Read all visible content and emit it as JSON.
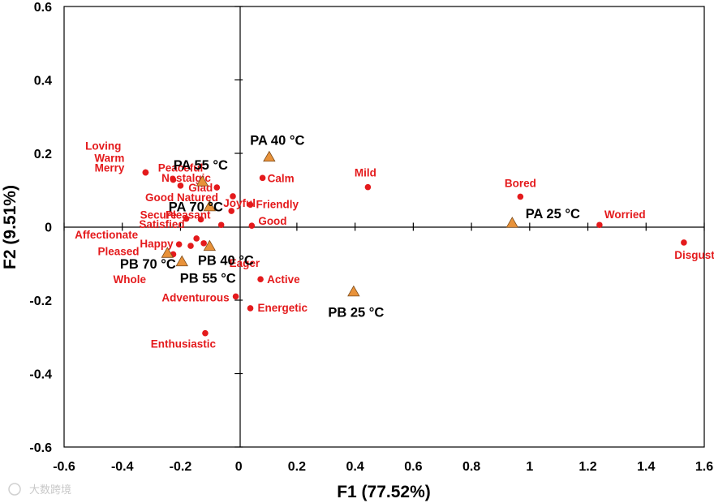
{
  "chart_data": {
    "type": "scatter",
    "title": "",
    "xlabel": "F1 (77.52%)",
    "ylabel": "F2 (9.51%)",
    "xlim": [
      -0.6,
      1.6
    ],
    "ylim": [
      -0.6,
      0.6
    ],
    "xticks": [
      -0.6,
      -0.4,
      -0.2,
      0,
      0.2,
      0.4,
      0.6,
      0.8,
      1,
      1.2,
      1.4,
      1.6
    ],
    "xtick_labels": [
      "-0.6",
      "-0.4",
      "-0.2",
      "0",
      "0.2",
      "0.4",
      "0.6",
      "0.8",
      "1",
      "1.2",
      "1.4",
      "1.6"
    ],
    "yticks": [
      -0.6,
      -0.4,
      -0.2,
      0,
      0.2,
      0.4,
      0.6
    ],
    "ytick_labels": [
      "-0.6",
      "-0.4",
      "-0.2",
      "0",
      "0.2",
      "0.4",
      "0.6"
    ],
    "grid": false,
    "series": [
      {
        "name": "Attributes",
        "marker": "circle",
        "color": "#e41a1c",
        "points": [
          {
            "label": "Loving",
            "x": -0.32,
            "y": 0.148
          },
          {
            "label": "Warm",
            "x": -0.32,
            "y": 0.148
          },
          {
            "label": "Merry",
            "x": -0.32,
            "y": 0.148
          },
          {
            "label": "Peaceful",
            "x": -0.225,
            "y": 0.128
          },
          {
            "label": "Nostalgic",
            "x": -0.2,
            "y": 0.112
          },
          {
            "label": "Glad",
            "x": -0.075,
            "y": 0.107
          },
          {
            "label": "Calm",
            "x": 0.082,
            "y": 0.133
          },
          {
            "label": "Mild",
            "x": 0.444,
            "y": 0.108
          },
          {
            "label": "Bored",
            "x": 0.968,
            "y": 0.082
          },
          {
            "label": "Good Natured",
            "x": -0.02,
            "y": 0.083
          },
          {
            "label": "Friendly",
            "x": 0.04,
            "y": 0.06
          },
          {
            "label": "Secure",
            "x": -0.18,
            "y": 0.022
          },
          {
            "label": "Joyful",
            "x": -0.025,
            "y": 0.043
          },
          {
            "label": "Pleasant",
            "x": -0.13,
            "y": 0.02
          },
          {
            "label": "Satisfied",
            "x": -0.06,
            "y": 0.005
          },
          {
            "label": "Good",
            "x": 0.045,
            "y": 0.003
          },
          {
            "label": "Worried",
            "x": 1.24,
            "y": 0.005
          },
          {
            "label": "Affectionate",
            "x": -0.145,
            "y": -0.032
          },
          {
            "label": "Happy",
            "x": -0.205,
            "y": -0.048
          },
          {
            "label": "Pleased",
            "x": -0.225,
            "y": -0.075
          },
          {
            "label": "Eager",
            "x": -0.12,
            "y": -0.045
          },
          {
            "label": "Disgusted",
            "x": 1.53,
            "y": -0.043
          },
          {
            "label": "Whole",
            "x": -0.165,
            "y": -0.052
          },
          {
            "label": "Active",
            "x": 0.075,
            "y": -0.143
          },
          {
            "label": "Adventurous",
            "x": -0.01,
            "y": -0.19
          },
          {
            "label": "Energetic",
            "x": 0.04,
            "y": -0.222
          },
          {
            "label": "Enthusiastic",
            "x": -0.115,
            "y": -0.29
          }
        ]
      },
      {
        "name": "Samples",
        "marker": "triangle",
        "color": "#e8923a",
        "points": [
          {
            "label": "PA 40 °C",
            "x": 0.105,
            "y": 0.19
          },
          {
            "label": "PA 55 °C",
            "x": -0.125,
            "y": 0.123
          },
          {
            "label": "PA 70 °C",
            "x": -0.1,
            "y": 0.055
          },
          {
            "label": "PA 25 °C",
            "x": 0.94,
            "y": 0.01
          },
          {
            "label": "PB 40 °C",
            "x": -0.1,
            "y": -0.053
          },
          {
            "label": "PB 70 °C",
            "x": -0.245,
            "y": -0.072
          },
          {
            "label": "PB 55 °C",
            "x": -0.195,
            "y": -0.095
          },
          {
            "label": "PB 25 °C",
            "x": 0.395,
            "y": -0.177
          }
        ]
      }
    ]
  },
  "watermark": "大数跨境"
}
